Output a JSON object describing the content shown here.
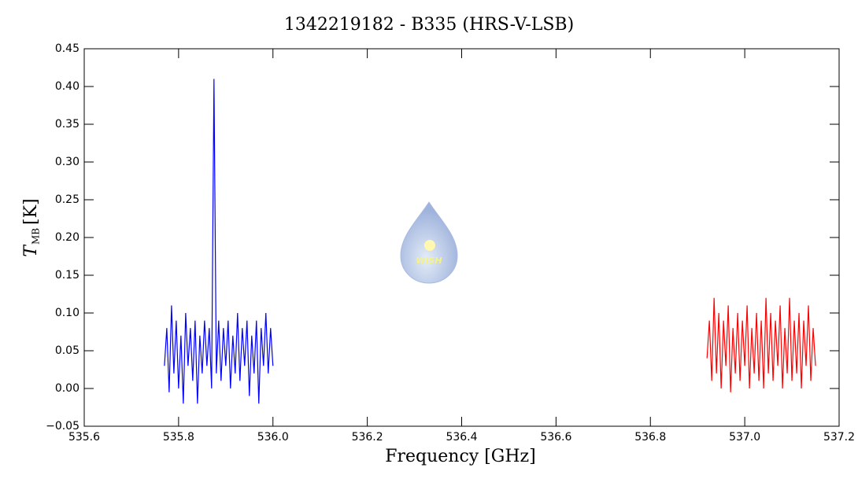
{
  "chart_data": {
    "type": "line",
    "title": "1342219182 - B335 (HRS-V-LSB)",
    "xlabel": "Frequency [GHz]",
    "ylabel_symbol": "T",
    "ylabel_subscript": "MB",
    "ylabel_unit": "[K]",
    "logo_text": "WISH",
    "xlim": [
      535.6,
      537.2
    ],
    "ylim": [
      -0.05,
      0.45
    ],
    "xticks": [
      535.6,
      535.8,
      {
        "value": 536.0,
        "label": "536.0"
      },
      536.2,
      536.4,
      536.6,
      536.8,
      {
        "value": 537.0,
        "label": "537.0"
      },
      537.2
    ],
    "yticks": [
      {
        "value": -0.05,
        "label": "−0.05"
      },
      {
        "value": 0,
        "label": "0.00"
      },
      0.05,
      {
        "value": 0.1,
        "label": "0.10"
      },
      0.15,
      {
        "value": 0.2,
        "label": "0.20"
      },
      0.25,
      {
        "value": 0.3,
        "label": "0.30"
      },
      0.35,
      {
        "value": 0.4,
        "label": "0.40"
      },
      0.45
    ],
    "series": [
      {
        "color": "#0000ff",
        "x": [
          535.77,
          535.775,
          535.78,
          535.785,
          535.79,
          535.795,
          535.8,
          535.805,
          535.81,
          535.815,
          535.82,
          535.825,
          535.83,
          535.835,
          535.84,
          535.845,
          535.85,
          535.855,
          535.86,
          535.865,
          535.87,
          535.875,
          535.88,
          535.885,
          535.89,
          535.895,
          535.9,
          535.905,
          535.91,
          535.915,
          535.92,
          535.925,
          535.93,
          535.935,
          535.94,
          535.945,
          535.95,
          535.955,
          535.96,
          535.965,
          535.97,
          535.975,
          535.98,
          535.985,
          535.99,
          535.995,
          536.0
        ],
        "values": [
          0.03,
          0.08,
          -0.005,
          0.11,
          0.02,
          0.09,
          0.0,
          0.07,
          -0.02,
          0.1,
          0.03,
          0.08,
          0.01,
          0.09,
          -0.02,
          0.07,
          0.02,
          0.09,
          0.03,
          0.08,
          0.0,
          0.41,
          0.02,
          0.09,
          0.01,
          0.08,
          0.03,
          0.09,
          0.0,
          0.07,
          0.02,
          0.1,
          0.01,
          0.08,
          0.03,
          0.09,
          -0.01,
          0.07,
          0.02,
          0.09,
          -0.02,
          0.08,
          0.03,
          0.1,
          0.02,
          0.08,
          0.03
        ]
      },
      {
        "color": "#ff0000",
        "x": [
          536.92,
          536.925,
          536.93,
          536.935,
          536.94,
          536.945,
          536.95,
          536.955,
          536.96,
          536.965,
          536.97,
          536.975,
          536.98,
          536.985,
          536.99,
          536.995,
          537.0,
          537.005,
          537.01,
          537.015,
          537.02,
          537.025,
          537.03,
          537.035,
          537.04,
          537.045,
          537.05,
          537.055,
          537.06,
          537.065,
          537.07,
          537.075,
          537.08,
          537.085,
          537.09,
          537.095,
          537.1,
          537.105,
          537.11,
          537.115,
          537.12,
          537.125,
          537.13,
          537.135,
          537.14,
          537.145,
          537.15
        ],
        "values": [
          0.04,
          0.09,
          0.01,
          0.12,
          0.02,
          0.1,
          0.0,
          0.09,
          0.03,
          0.11,
          -0.005,
          0.08,
          0.02,
          0.1,
          0.01,
          0.09,
          0.03,
          0.11,
          0.0,
          0.08,
          0.02,
          0.1,
          0.01,
          0.09,
          0.0,
          0.12,
          0.02,
          0.1,
          0.01,
          0.09,
          0.03,
          0.11,
          0.0,
          0.08,
          0.02,
          0.12,
          0.01,
          0.09,
          0.02,
          0.1,
          0.0,
          0.09,
          0.03,
          0.11,
          0.01,
          0.08,
          0.03
        ]
      }
    ]
  }
}
